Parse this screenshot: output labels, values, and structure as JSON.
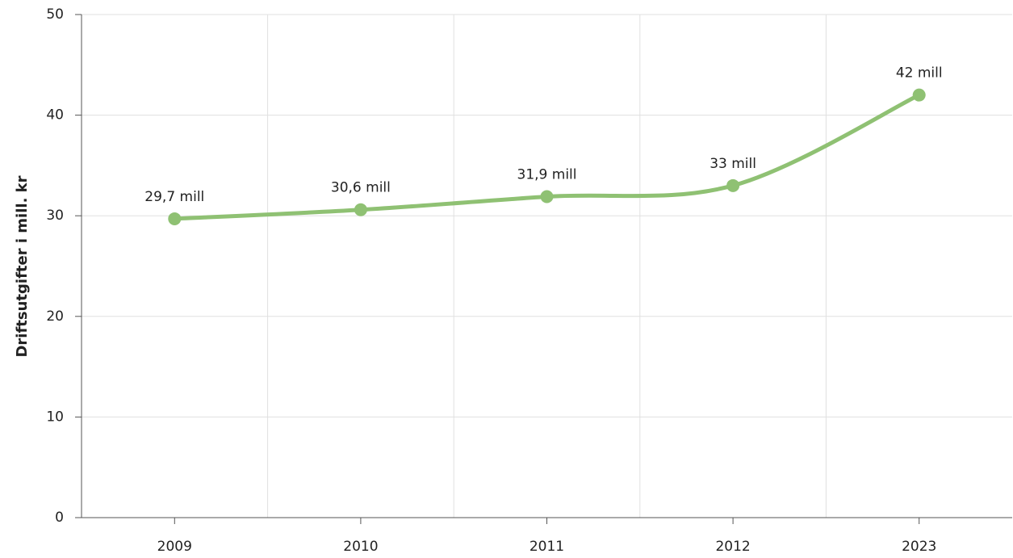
{
  "chart_data": {
    "type": "line",
    "y_label": "Driftsutgifter i mill. kr",
    "categories": [
      "2009",
      "2010",
      "2011",
      "2012",
      "2023"
    ],
    "series": [
      {
        "name": "Driftsutgifter",
        "color": "#8fc173",
        "values": [
          29.7,
          30.6,
          31.9,
          33,
          42
        ],
        "value_labels": [
          "29,7 mill",
          "30,6 mill",
          "31,9 mill",
          "33 mill",
          "42 mill"
        ]
      }
    ],
    "ylim": [
      0,
      50
    ],
    "yticks": [
      0,
      10,
      20,
      30,
      40,
      50
    ],
    "grid": true
  }
}
